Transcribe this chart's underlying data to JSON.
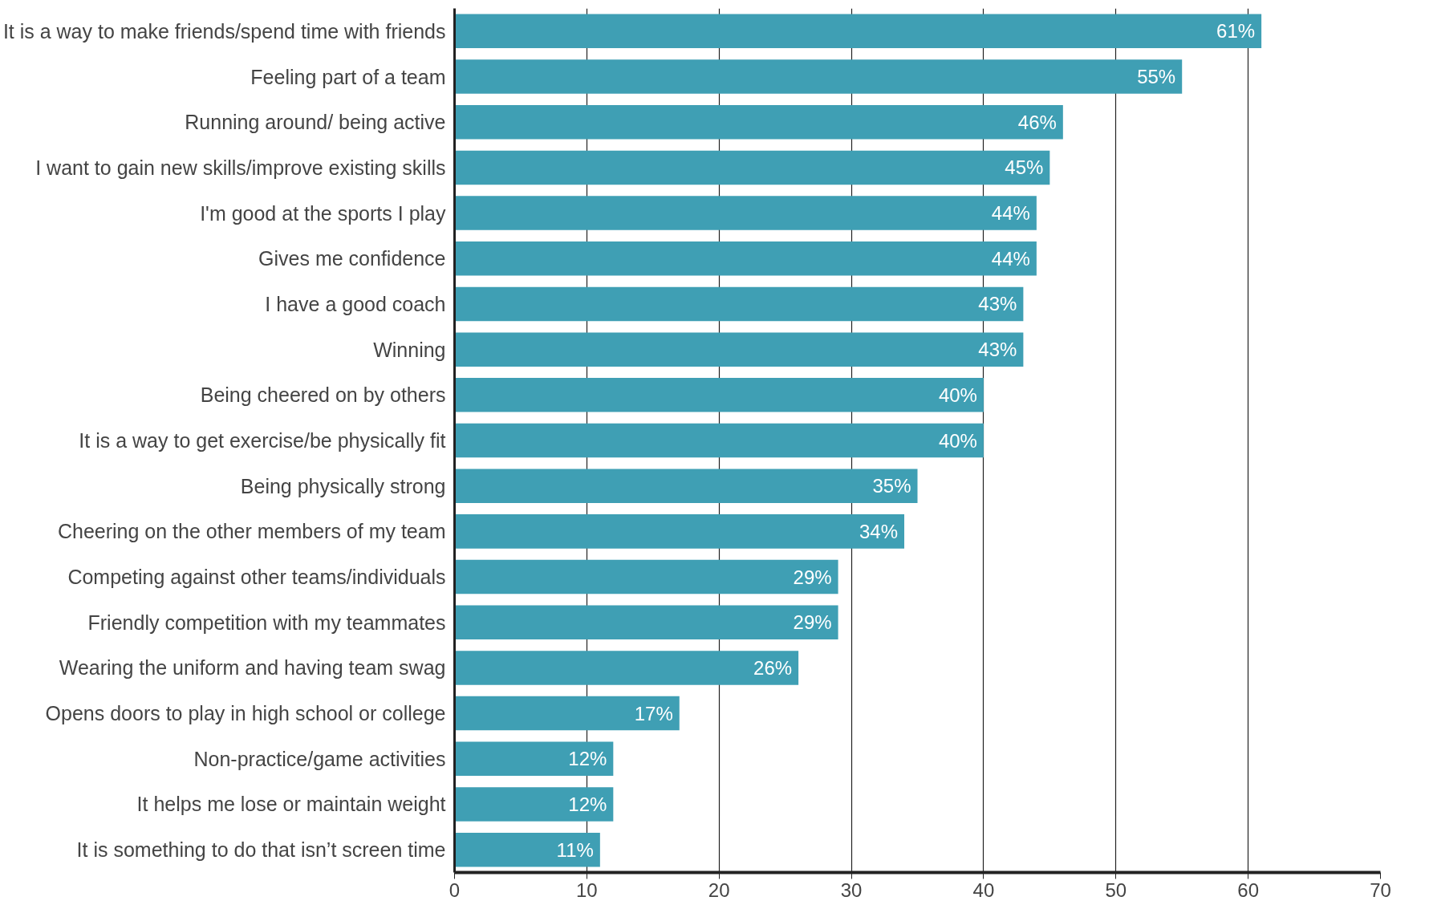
{
  "chart_data": {
    "type": "bar",
    "orientation": "horizontal",
    "categories": [
      "It is a way to make friends/spend time with friends",
      "Feeling part of a team",
      "Running around/ being active",
      "I want to gain new skills/improve existing skills",
      "I'm good at the sports I play",
      "Gives me confidence",
      "I have a good coach",
      "Winning",
      "Being cheered on by others",
      "It is a way to get exercise/be physically fit",
      "Being physically strong",
      "Cheering on the other members of my team",
      "Competing against other teams/individuals",
      "Friendly competition with my teammates",
      "Wearing the uniform and having team swag",
      "Opens doors to play in high school or college",
      "Non-practice/game activities",
      "It helps me lose or maintain weight",
      "It is something to do that isn’t screen time"
    ],
    "values": [
      61,
      55,
      46,
      45,
      44,
      44,
      43,
      43,
      40,
      40,
      35,
      34,
      29,
      29,
      26,
      17,
      12,
      12,
      11
    ],
    "value_labels": [
      "61%",
      "55%",
      "46%",
      "45%",
      "44%",
      "44%",
      "43%",
      "43%",
      "40%",
      "40%",
      "35%",
      "34%",
      "29%",
      "29%",
      "26%",
      "17%",
      "12%",
      "12%",
      "11%"
    ],
    "color": "#3f9fb4",
    "xlim": [
      0,
      70
    ],
    "xticks": [
      0,
      10,
      20,
      30,
      40,
      50,
      60,
      70
    ],
    "grid": "x"
  }
}
